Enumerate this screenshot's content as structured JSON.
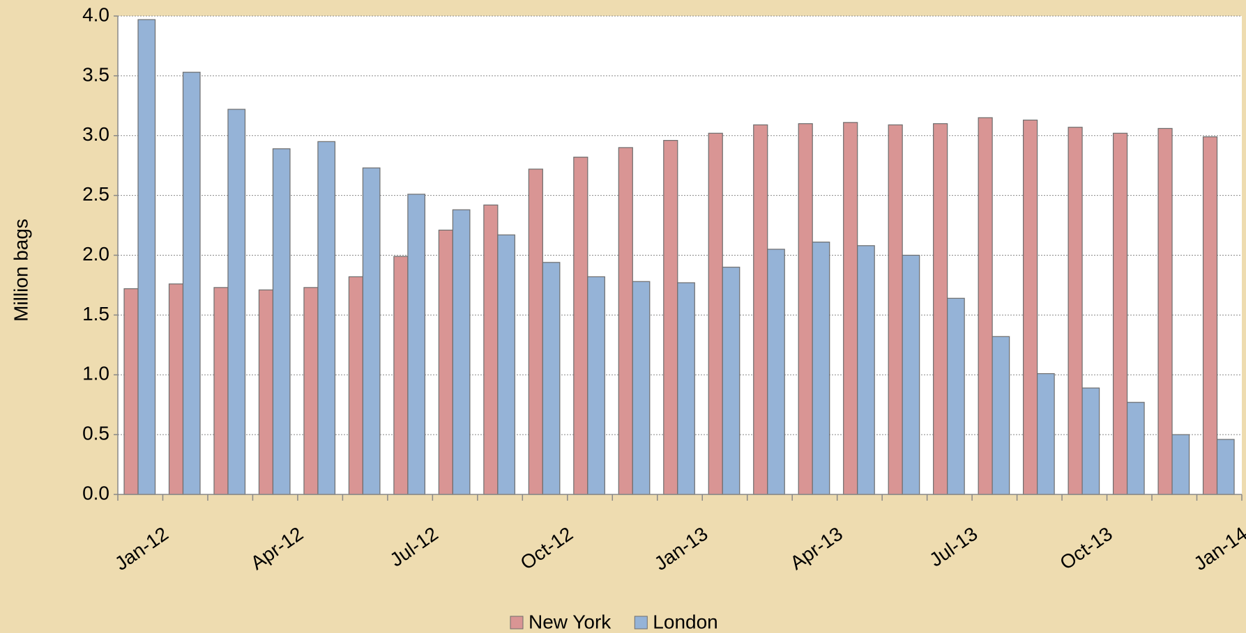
{
  "chart_data": {
    "type": "bar",
    "y_label": "Million bags",
    "categories": [
      "Jan-12",
      null,
      null,
      "Apr-12",
      null,
      null,
      "Jul-12",
      null,
      null,
      "Oct-12",
      null,
      null,
      "Jan-13",
      null,
      null,
      "Apr-13",
      null,
      null,
      "Jul-13",
      null,
      null,
      "Oct-13",
      null,
      null,
      "Jan-14"
    ],
    "series": [
      {
        "name": "New York",
        "color": "#d99594",
        "values": [
          1.72,
          1.76,
          1.73,
          1.71,
          1.73,
          1.82,
          1.99,
          2.21,
          2.42,
          2.72,
          2.82,
          2.9,
          2.96,
          3.02,
          3.09,
          3.1,
          3.11,
          3.09,
          3.1,
          3.15,
          3.13,
          3.07,
          3.02,
          3.06,
          2.99
        ]
      },
      {
        "name": "London",
        "color": "#95b3d7",
        "values": [
          3.97,
          3.53,
          3.22,
          2.89,
          2.95,
          2.73,
          2.51,
          2.38,
          2.17,
          1.94,
          1.82,
          1.78,
          1.77,
          1.9,
          2.05,
          2.11,
          2.08,
          2.0,
          1.64,
          1.32,
          1.01,
          0.89,
          0.77,
          0.5,
          0.46
        ]
      }
    ],
    "ylim": [
      0,
      4
    ],
    "yticks": [
      {
        "value": 0,
        "label": "0.0"
      },
      0.5,
      {
        "value": 1,
        "label": "1.0"
      },
      1.5,
      {
        "value": 2,
        "label": "2.0"
      },
      2.5,
      {
        "value": 3,
        "label": "3.0"
      },
      3.5,
      {
        "value": 4,
        "label": "4.0"
      }
    ],
    "grid": true,
    "legend": "bottom"
  }
}
